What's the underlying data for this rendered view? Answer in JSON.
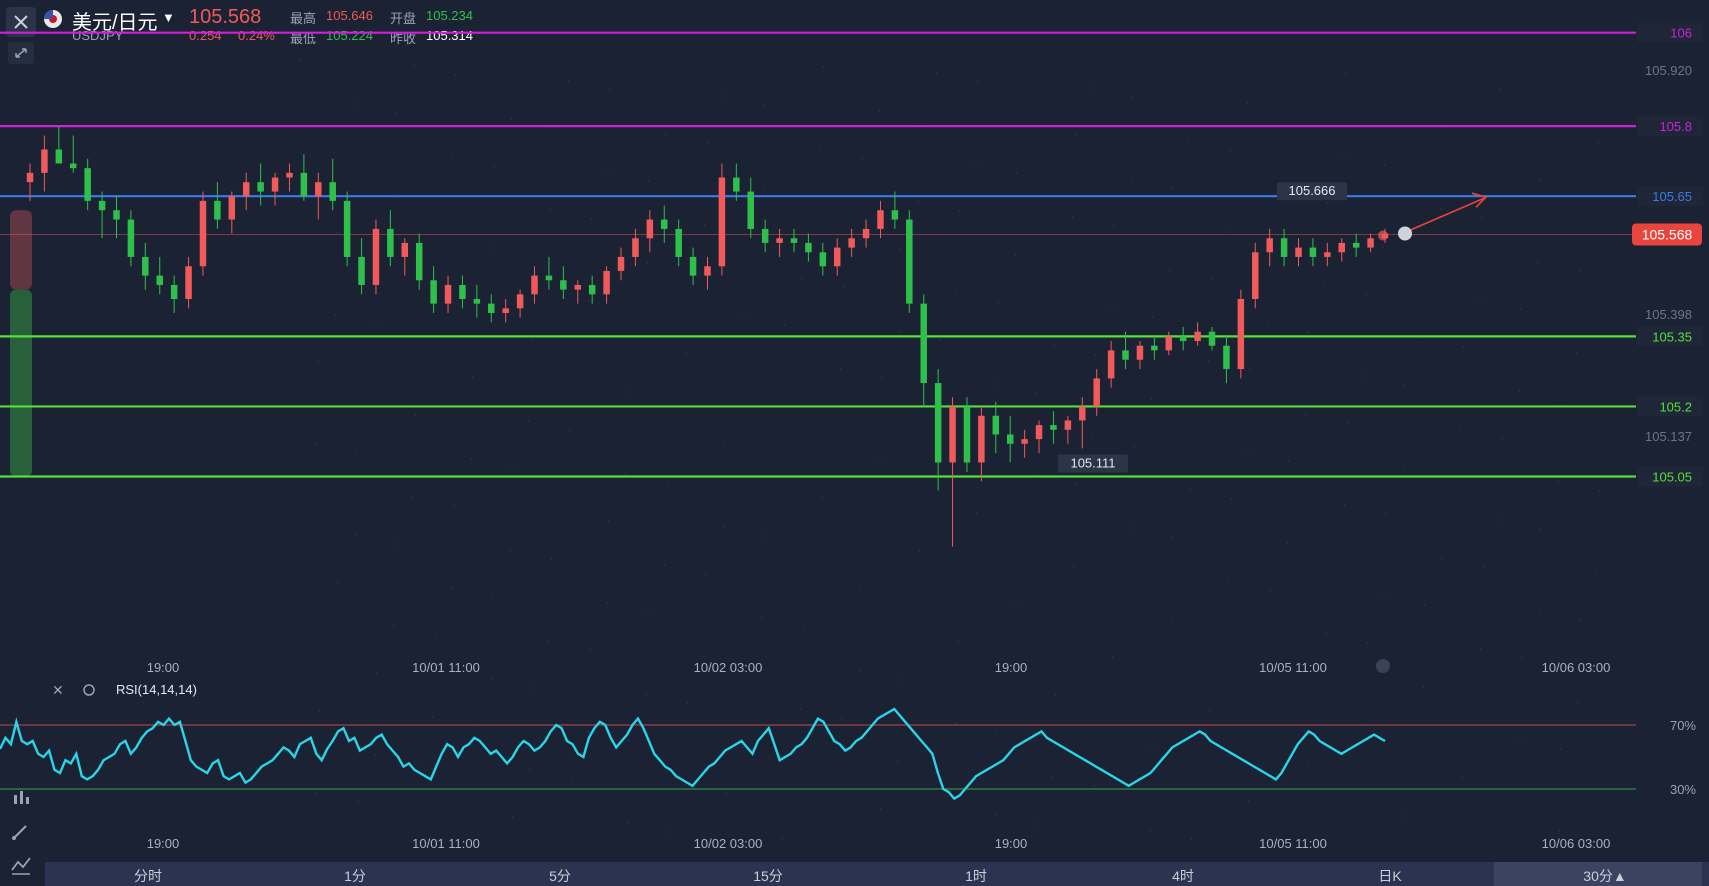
{
  "header": {
    "title": "美元/日元",
    "code": "USDJPY",
    "price": "105.568",
    "change": "0.254",
    "change_pct": "0.24%",
    "high_label": "最高",
    "high": "105.646",
    "low_label": "最低",
    "low": "105.224",
    "open_label": "开盘",
    "open": "105.234",
    "prev_label": "昨收",
    "prev": "105.314"
  },
  "colors": {
    "background": "#1b2233",
    "up": "#f05a5a",
    "down": "#2fc04b",
    "magenta_line": "#d020d8",
    "blue_line": "#3a7be8",
    "green_line": "#55e03a",
    "rsi_line": "#2ad5e8"
  },
  "chart_data": {
    "type": "candlestick",
    "y_range": [
      104.7,
      106.07
    ],
    "y_tick_labels": [
      "105.920",
      "105.398",
      "105.137"
    ],
    "x_tick_labels": [
      "19:00",
      "10/01 11:00",
      "10/02 03:00",
      "19:00",
      "10/05 11:00",
      "10/06 03:00"
    ],
    "current_price": "105.568",
    "max_marker": "105.666",
    "min_marker": "105.111",
    "levels": [
      {
        "value": 106,
        "label": "106",
        "color": "#d020d8"
      },
      {
        "value": 105.8,
        "label": "105.8",
        "color": "#d020d8"
      },
      {
        "value": 105.65,
        "label": "105.65",
        "color": "#3a7be8"
      },
      {
        "value": 105.35,
        "label": "105.35",
        "color": "#55e03a"
      },
      {
        "value": 105.2,
        "label": "105.2",
        "color": "#55e03a"
      },
      {
        "value": 105.05,
        "label": "105.05",
        "color": "#55e03a"
      }
    ],
    "candles_ohlc": [
      [
        105.68,
        105.72,
        105.64,
        105.7
      ],
      [
        105.7,
        105.78,
        105.66,
        105.75
      ],
      [
        105.75,
        105.8,
        105.72,
        105.72
      ],
      [
        105.72,
        105.78,
        105.7,
        105.71
      ],
      [
        105.71,
        105.73,
        105.62,
        105.64
      ],
      [
        105.64,
        105.66,
        105.56,
        105.62
      ],
      [
        105.62,
        105.65,
        105.56,
        105.6
      ],
      [
        105.6,
        105.62,
        105.5,
        105.52
      ],
      [
        105.52,
        105.55,
        105.45,
        105.48
      ],
      [
        105.48,
        105.52,
        105.44,
        105.46
      ],
      [
        105.46,
        105.48,
        105.4,
        105.43
      ],
      [
        105.43,
        105.52,
        105.41,
        105.5
      ],
      [
        105.5,
        105.66,
        105.48,
        105.64
      ],
      [
        105.64,
        105.68,
        105.58,
        105.6
      ],
      [
        105.6,
        105.66,
        105.57,
        105.65
      ],
      [
        105.65,
        105.7,
        105.62,
        105.68
      ],
      [
        105.68,
        105.72,
        105.63,
        105.66
      ],
      [
        105.66,
        105.7,
        105.63,
        105.69
      ],
      [
        105.69,
        105.72,
        105.66,
        105.7
      ],
      [
        105.7,
        105.74,
        105.64,
        105.65
      ],
      [
        105.65,
        105.7,
        105.6,
        105.68
      ],
      [
        105.68,
        105.73,
        105.62,
        105.64
      ],
      [
        105.64,
        105.66,
        105.5,
        105.52
      ],
      [
        105.52,
        105.56,
        105.44,
        105.46
      ],
      [
        105.46,
        105.6,
        105.44,
        105.58
      ],
      [
        105.58,
        105.62,
        105.5,
        105.52
      ],
      [
        105.52,
        105.56,
        105.48,
        105.55
      ],
      [
        105.55,
        105.57,
        105.45,
        105.47
      ],
      [
        105.47,
        105.5,
        105.4,
        105.42
      ],
      [
        105.42,
        105.48,
        105.4,
        105.46
      ],
      [
        105.46,
        105.48,
        105.41,
        105.43
      ],
      [
        105.43,
        105.46,
        105.39,
        105.42
      ],
      [
        105.42,
        105.44,
        105.38,
        105.4
      ],
      [
        105.4,
        105.43,
        105.38,
        105.41
      ],
      [
        105.41,
        105.45,
        105.39,
        105.44
      ],
      [
        105.44,
        105.5,
        105.42,
        105.48
      ],
      [
        105.48,
        105.52,
        105.45,
        105.47
      ],
      [
        105.47,
        105.5,
        105.43,
        105.45
      ],
      [
        105.45,
        105.47,
        105.42,
        105.46
      ],
      [
        105.46,
        105.48,
        105.42,
        105.44
      ],
      [
        105.44,
        105.5,
        105.42,
        105.49
      ],
      [
        105.49,
        105.54,
        105.47,
        105.52
      ],
      [
        105.52,
        105.58,
        105.5,
        105.56
      ],
      [
        105.56,
        105.62,
        105.53,
        105.6
      ],
      [
        105.6,
        105.63,
        105.55,
        105.58
      ],
      [
        105.58,
        105.6,
        105.5,
        105.52
      ],
      [
        105.52,
        105.54,
        105.46,
        105.48
      ],
      [
        105.48,
        105.52,
        105.45,
        105.5
      ],
      [
        105.5,
        105.72,
        105.48,
        105.69
      ],
      [
        105.69,
        105.72,
        105.64,
        105.66
      ],
      [
        105.66,
        105.69,
        105.56,
        105.58
      ],
      [
        105.58,
        105.6,
        105.53,
        105.55
      ],
      [
        105.55,
        105.58,
        105.52,
        105.56
      ],
      [
        105.56,
        105.58,
        105.53,
        105.55
      ],
      [
        105.55,
        105.57,
        105.51,
        105.53
      ],
      [
        105.53,
        105.55,
        105.48,
        105.5
      ],
      [
        105.5,
        105.56,
        105.48,
        105.54
      ],
      [
        105.54,
        105.58,
        105.52,
        105.56
      ],
      [
        105.56,
        105.6,
        105.54,
        105.58
      ],
      [
        105.58,
        105.64,
        105.56,
        105.62
      ],
      [
        105.62,
        105.66,
        105.58,
        105.6
      ],
      [
        105.6,
        105.62,
        105.4,
        105.42
      ],
      [
        105.42,
        105.44,
        105.2,
        105.25
      ],
      [
        105.25,
        105.28,
        105.02,
        105.08
      ],
      [
        105.08,
        105.22,
        104.9,
        105.2
      ],
      [
        105.2,
        105.22,
        105.06,
        105.08
      ],
      [
        105.08,
        105.2,
        105.04,
        105.18
      ],
      [
        105.18,
        105.21,
        105.1,
        105.14
      ],
      [
        105.14,
        105.18,
        105.08,
        105.12
      ],
      [
        105.12,
        105.15,
        105.09,
        105.13
      ],
      [
        105.13,
        105.17,
        105.1,
        105.16
      ],
      [
        105.16,
        105.19,
        105.12,
        105.15
      ],
      [
        105.15,
        105.18,
        105.12,
        105.17
      ],
      [
        105.17,
        105.22,
        105.11,
        105.2
      ],
      [
        105.2,
        105.28,
        105.18,
        105.26
      ],
      [
        105.26,
        105.34,
        105.24,
        105.32
      ],
      [
        105.32,
        105.36,
        105.28,
        105.3
      ],
      [
        105.3,
        105.34,
        105.28,
        105.33
      ],
      [
        105.33,
        105.35,
        105.3,
        105.32
      ],
      [
        105.32,
        105.36,
        105.31,
        105.35
      ],
      [
        105.35,
        105.37,
        105.32,
        105.34
      ],
      [
        105.34,
        105.38,
        105.33,
        105.36
      ],
      [
        105.36,
        105.37,
        105.32,
        105.33
      ],
      [
        105.33,
        105.35,
        105.25,
        105.28
      ],
      [
        105.28,
        105.45,
        105.26,
        105.43
      ],
      [
        105.43,
        105.55,
        105.41,
        105.53
      ],
      [
        105.53,
        105.58,
        105.5,
        105.56
      ],
      [
        105.56,
        105.58,
        105.5,
        105.52
      ],
      [
        105.52,
        105.56,
        105.5,
        105.54
      ],
      [
        105.54,
        105.56,
        105.5,
        105.52
      ],
      [
        105.52,
        105.55,
        105.5,
        105.53
      ],
      [
        105.53,
        105.56,
        105.51,
        105.55
      ],
      [
        105.55,
        105.57,
        105.52,
        105.54
      ],
      [
        105.54,
        105.57,
        105.53,
        105.56
      ],
      [
        105.56,
        105.58,
        105.55,
        105.57
      ]
    ],
    "rsi": {
      "label": "RSI(14,14,14)",
      "levels": [
        "70%",
        "30%"
      ],
      "values": [
        55,
        62,
        58,
        72,
        60,
        58,
        60,
        52,
        50,
        54,
        42,
        40,
        48,
        46,
        52,
        38,
        36,
        38,
        42,
        48,
        50,
        52,
        58,
        60,
        52,
        56,
        62,
        66,
        68,
        72,
        70,
        74,
        70,
        72,
        60,
        48,
        44,
        42,
        40,
        46,
        48,
        38,
        36,
        38,
        40,
        34,
        36,
        40,
        44,
        46,
        48,
        52,
        56,
        54,
        50,
        58,
        60,
        62,
        52,
        48,
        55,
        60,
        66,
        68,
        60,
        62,
        54,
        56,
        58,
        62,
        64,
        58,
        54,
        50,
        44,
        46,
        42,
        40,
        38,
        36,
        44,
        52,
        58,
        56,
        50,
        56,
        58,
        62,
        60,
        56,
        52,
        54,
        50,
        46,
        50,
        56,
        60,
        58,
        54,
        56,
        60,
        66,
        70,
        68,
        60,
        58,
        52,
        50,
        62,
        68,
        72,
        70,
        62,
        56,
        60,
        64,
        70,
        74,
        68,
        60,
        52,
        48,
        44,
        42,
        38,
        36,
        34,
        32,
        36,
        40,
        44,
        46,
        50,
        54,
        56,
        58,
        60,
        56,
        52,
        60,
        64,
        68,
        58,
        48,
        50,
        52,
        56,
        58,
        62,
        68,
        74,
        72,
        66,
        60,
        58,
        54,
        56,
        60,
        62,
        66,
        70,
        74,
        76,
        78,
        80,
        76,
        72,
        68,
        64,
        60,
        56,
        52,
        40,
        30,
        28,
        24,
        26,
        30,
        34,
        38,
        40,
        42,
        44,
        46,
        48,
        52,
        56,
        58,
        60,
        62,
        64,
        66,
        62,
        60,
        58,
        56,
        54,
        52,
        50,
        48,
        46,
        44,
        42,
        40,
        38,
        36,
        34,
        32,
        34,
        36,
        38,
        40,
        44,
        48,
        52,
        56,
        58,
        60,
        62,
        64,
        66,
        64,
        60,
        58,
        56,
        54,
        52,
        50,
        48,
        46,
        44,
        42,
        40,
        38,
        36,
        40,
        46,
        52,
        58,
        62,
        66,
        64,
        60,
        58,
        56,
        54,
        52,
        54,
        56,
        58,
        60,
        62,
        64,
        62,
        60
      ]
    }
  },
  "tabs": [
    "分时",
    "1分",
    "5分",
    "15分",
    "1时",
    "4时",
    "日K"
  ],
  "period_selector": "30分▲"
}
